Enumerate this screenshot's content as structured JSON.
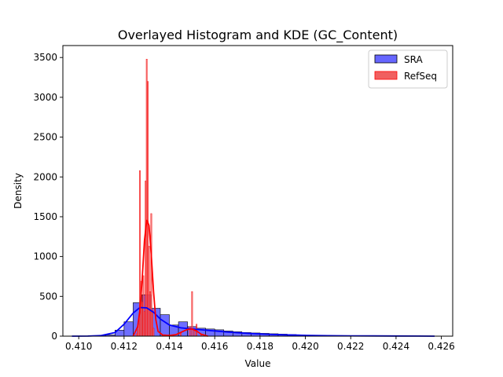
{
  "chart_data": {
    "type": "histogram",
    "title": "Overlayed Histogram and KDE (GC_Content)",
    "xlabel": "Value",
    "ylabel": "Density",
    "xlim": [
      0.4093,
      0.4265
    ],
    "ylim": [
      0,
      3650
    ],
    "x_ticks": [
      0.41,
      0.412,
      0.414,
      0.416,
      0.418,
      0.42,
      0.422,
      0.424,
      0.426
    ],
    "x_tick_labels": [
      "0.410",
      "0.412",
      "0.414",
      "0.416",
      "0.418",
      "0.420",
      "0.422",
      "0.424",
      "0.426"
    ],
    "y_ticks": [
      0,
      500,
      1000,
      1500,
      2000,
      2500,
      3000,
      3500
    ],
    "y_tick_labels": [
      "0",
      "500",
      "1000",
      "1500",
      "2000",
      "2500",
      "3000",
      "3500"
    ],
    "legend_position": "top-right",
    "grid": false,
    "series": [
      {
        "name": "SRA",
        "kind": "histogram",
        "color": "#0000ff",
        "fill": "#6666ff",
        "bin_edges": [
          0.41,
          0.4104,
          0.4108,
          0.4112,
          0.4116,
          0.412,
          0.4124,
          0.4128,
          0.4132,
          0.4136,
          0.414,
          0.4144,
          0.4148,
          0.4152,
          0.4156,
          0.416,
          0.4164,
          0.4168,
          0.4172,
          0.4176,
          0.418,
          0.4184,
          0.4188,
          0.4192,
          0.4196,
          0.42,
          0.4204,
          0.4208,
          0.4212,
          0.4216,
          0.422,
          0.4224,
          0.4228,
          0.4232,
          0.4236,
          0.424,
          0.4244,
          0.4248,
          0.4252,
          0.4256
        ],
        "values": [
          0,
          0,
          5,
          15,
          75,
          180,
          420,
          520,
          350,
          270,
          140,
          180,
          120,
          100,
          90,
          80,
          65,
          55,
          45,
          40,
          35,
          30,
          25,
          20,
          15,
          12,
          10,
          8,
          6,
          5,
          4,
          3,
          3,
          2,
          2,
          1,
          1,
          1,
          1
        ],
        "kde": {
          "x": [
            0.4097,
            0.4104,
            0.411,
            0.4116,
            0.412,
            0.4124,
            0.4127,
            0.413,
            0.4133,
            0.4136,
            0.414,
            0.4145,
            0.415,
            0.4155,
            0.416,
            0.4165,
            0.417,
            0.4175,
            0.418,
            0.4185,
            0.419,
            0.42,
            0.421,
            0.422,
            0.423,
            0.424,
            0.425,
            0.4257
          ],
          "y": [
            0,
            1,
            8,
            45,
            150,
            290,
            360,
            355,
            300,
            215,
            140,
            105,
            90,
            78,
            65,
            53,
            43,
            35,
            28,
            22,
            17,
            10,
            6,
            4,
            3,
            2,
            1,
            0
          ]
        }
      },
      {
        "name": "RefSeq",
        "kind": "histogram",
        "color": "#ff0000",
        "fill": "#f06060",
        "bar_width": 5e-05,
        "bars": [
          {
            "x": 0.41255,
            "value": 30
          },
          {
            "x": 0.4126,
            "value": 80
          },
          {
            "x": 0.41265,
            "value": 150
          },
          {
            "x": 0.4127,
            "value": 2080
          },
          {
            "x": 0.41275,
            "value": 690
          },
          {
            "x": 0.4128,
            "value": 430
          },
          {
            "x": 0.41285,
            "value": 760
          },
          {
            "x": 0.4129,
            "value": 310
          },
          {
            "x": 0.41295,
            "value": 1950
          },
          {
            "x": 0.413,
            "value": 3480
          },
          {
            "x": 0.41305,
            "value": 3200
          },
          {
            "x": 0.4131,
            "value": 1130
          },
          {
            "x": 0.41315,
            "value": 560
          },
          {
            "x": 0.4132,
            "value": 1540
          },
          {
            "x": 0.41325,
            "value": 330
          },
          {
            "x": 0.4133,
            "value": 100
          },
          {
            "x": 0.4137,
            "value": 10
          },
          {
            "x": 0.414,
            "value": 15
          },
          {
            "x": 0.4145,
            "value": 40
          },
          {
            "x": 0.4149,
            "value": 120
          },
          {
            "x": 0.415,
            "value": 560
          },
          {
            "x": 0.4151,
            "value": 90
          },
          {
            "x": 0.4152,
            "value": 150
          },
          {
            "x": 0.4154,
            "value": 20
          }
        ],
        "kde": {
          "x": [
            0.4124,
            0.4126,
            0.4127,
            0.4128,
            0.4129,
            0.413,
            0.4131,
            0.4132,
            0.4133,
            0.4134,
            0.4135,
            0.4137,
            0.414,
            0.4143,
            0.4146,
            0.4148,
            0.415,
            0.4152,
            0.4154,
            0.4157
          ],
          "y": [
            0,
            120,
            330,
            720,
            1200,
            1460,
            1390,
            1020,
            560,
            210,
            60,
            15,
            8,
            20,
            60,
            85,
            90,
            65,
            25,
            0
          ]
        }
      }
    ]
  }
}
